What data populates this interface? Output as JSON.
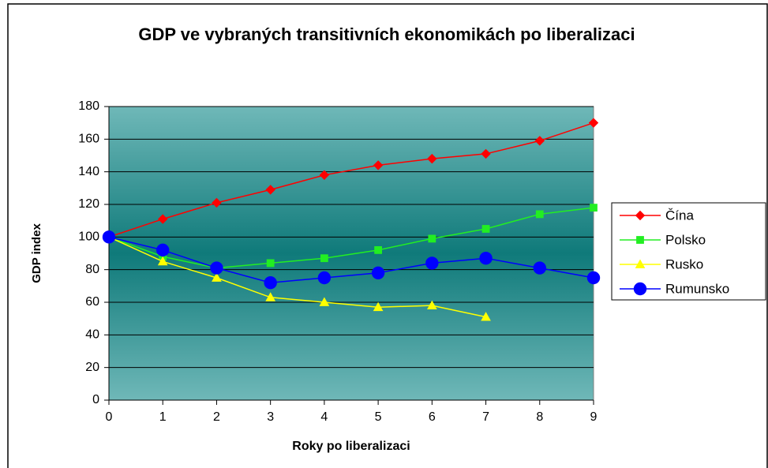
{
  "chart_data": {
    "type": "line",
    "title": "GDP ve vybraných transitivních ekonomikách po liberalizaci",
    "x_label": "Roky po liberalizaci",
    "y_label": "GDP index",
    "x": [
      0,
      1,
      2,
      3,
      4,
      5,
      6,
      7,
      8,
      9
    ],
    "xlim": [
      0,
      9
    ],
    "xticks": [
      0,
      1,
      2,
      3,
      4,
      5,
      6,
      7,
      8,
      9
    ],
    "ylim": [
      0,
      180
    ],
    "yticks": [
      0,
      20,
      40,
      60,
      80,
      100,
      120,
      140,
      160,
      180
    ],
    "grid": true,
    "legend": "right",
    "series": [
      {
        "name": "Čína",
        "color": "#ff0000",
        "marker": "diamond",
        "values": [
          100,
          111,
          121,
          129,
          138,
          144,
          148,
          151,
          159,
          170
        ]
      },
      {
        "name": "Polsko",
        "color": "#22ee22",
        "marker": "square",
        "values": [
          100,
          88,
          81,
          84,
          87,
          92,
          99,
          105,
          114,
          118
        ]
      },
      {
        "name": "Rusko",
        "color": "#ffff00",
        "marker": "triangle",
        "values": [
          100,
          85,
          75,
          63,
          60,
          57,
          58,
          51,
          null,
          null
        ]
      },
      {
        "name": "Rumunsko",
        "color": "#0000ff",
        "marker": "circle",
        "values": [
          100,
          92,
          81,
          72,
          75,
          78,
          84,
          87,
          81,
          75
        ]
      }
    ]
  }
}
